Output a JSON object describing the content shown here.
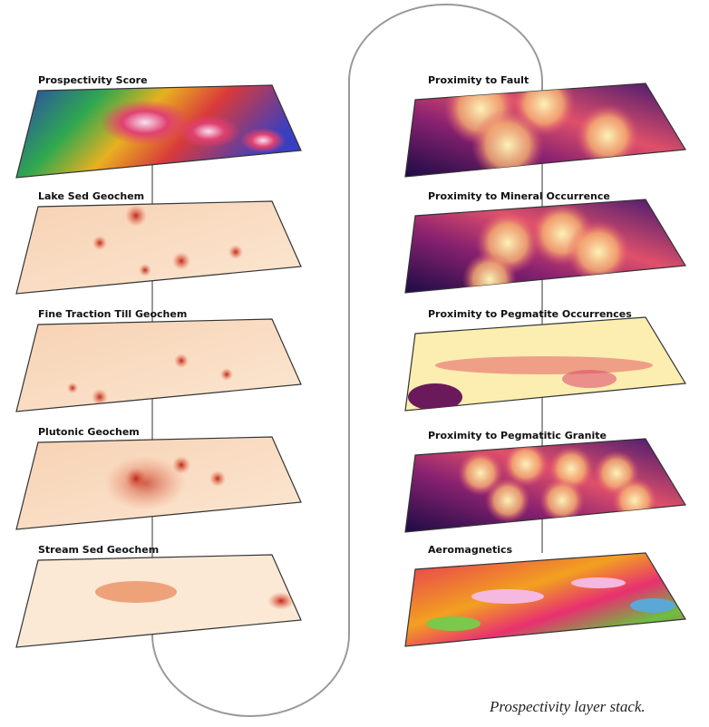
{
  "left_layers": [
    {
      "label": "Prospectivity Score"
    },
    {
      "label": "Lake Sed Geochem"
    },
    {
      "label": "Fine Traction Till Geochem"
    },
    {
      "label": "Plutonic Geochem"
    },
    {
      "label": "Stream Sed Geochem"
    }
  ],
  "right_layers": [
    {
      "label": "Proximity to Fault"
    },
    {
      "label": "Proximity to Mineral Occurrence"
    },
    {
      "label": "Proximity to Pegmatite Occurrences"
    },
    {
      "label": "Proximity to Pegmatitic Granite"
    },
    {
      "label": "Aeromagnetics"
    }
  ],
  "caption": "Prospectivity layer stack."
}
